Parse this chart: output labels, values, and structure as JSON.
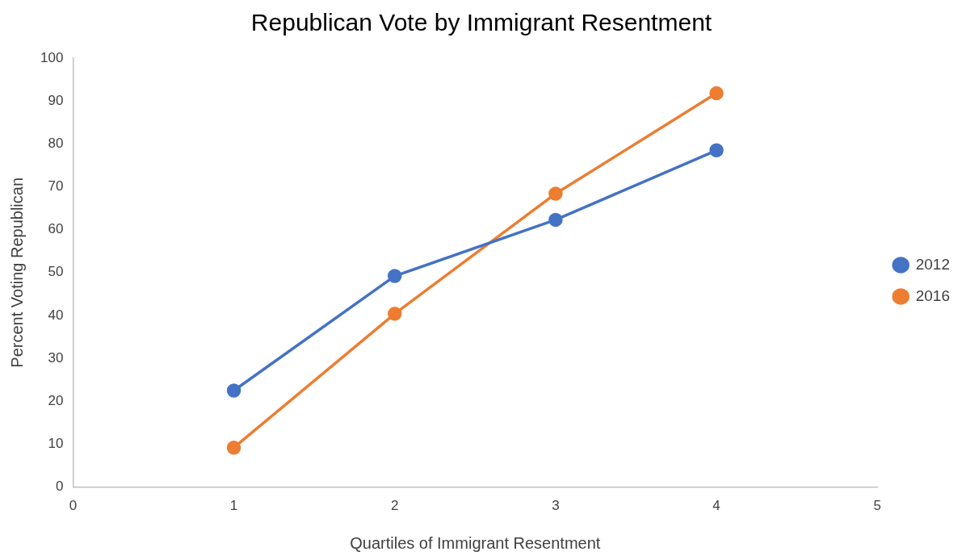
{
  "chart_data": {
    "type": "line",
    "title": "Republican Vote by Immigrant Resentment",
    "xlabel": "Quartiles of Immigrant Resentment",
    "ylabel": "Percent Voting Republican",
    "x": [
      1,
      2,
      3,
      4
    ],
    "series": [
      {
        "name": "2012",
        "color": "#4472c4",
        "values": [
          22.5,
          49.2,
          62.3,
          78.5
        ]
      },
      {
        "name": "2016",
        "color": "#ed7d31",
        "values": [
          9.2,
          40.4,
          68.4,
          91.8
        ]
      }
    ],
    "xlim": [
      0,
      5
    ],
    "xticks": [
      0,
      1,
      2,
      3,
      4,
      5
    ],
    "ylim": [
      0,
      100
    ],
    "yticks": [
      0,
      10,
      20,
      30,
      40,
      50,
      60,
      70,
      80,
      90,
      100
    ],
    "grid": false,
    "legend": "right",
    "marker": "circle",
    "line_style": "solid"
  }
}
